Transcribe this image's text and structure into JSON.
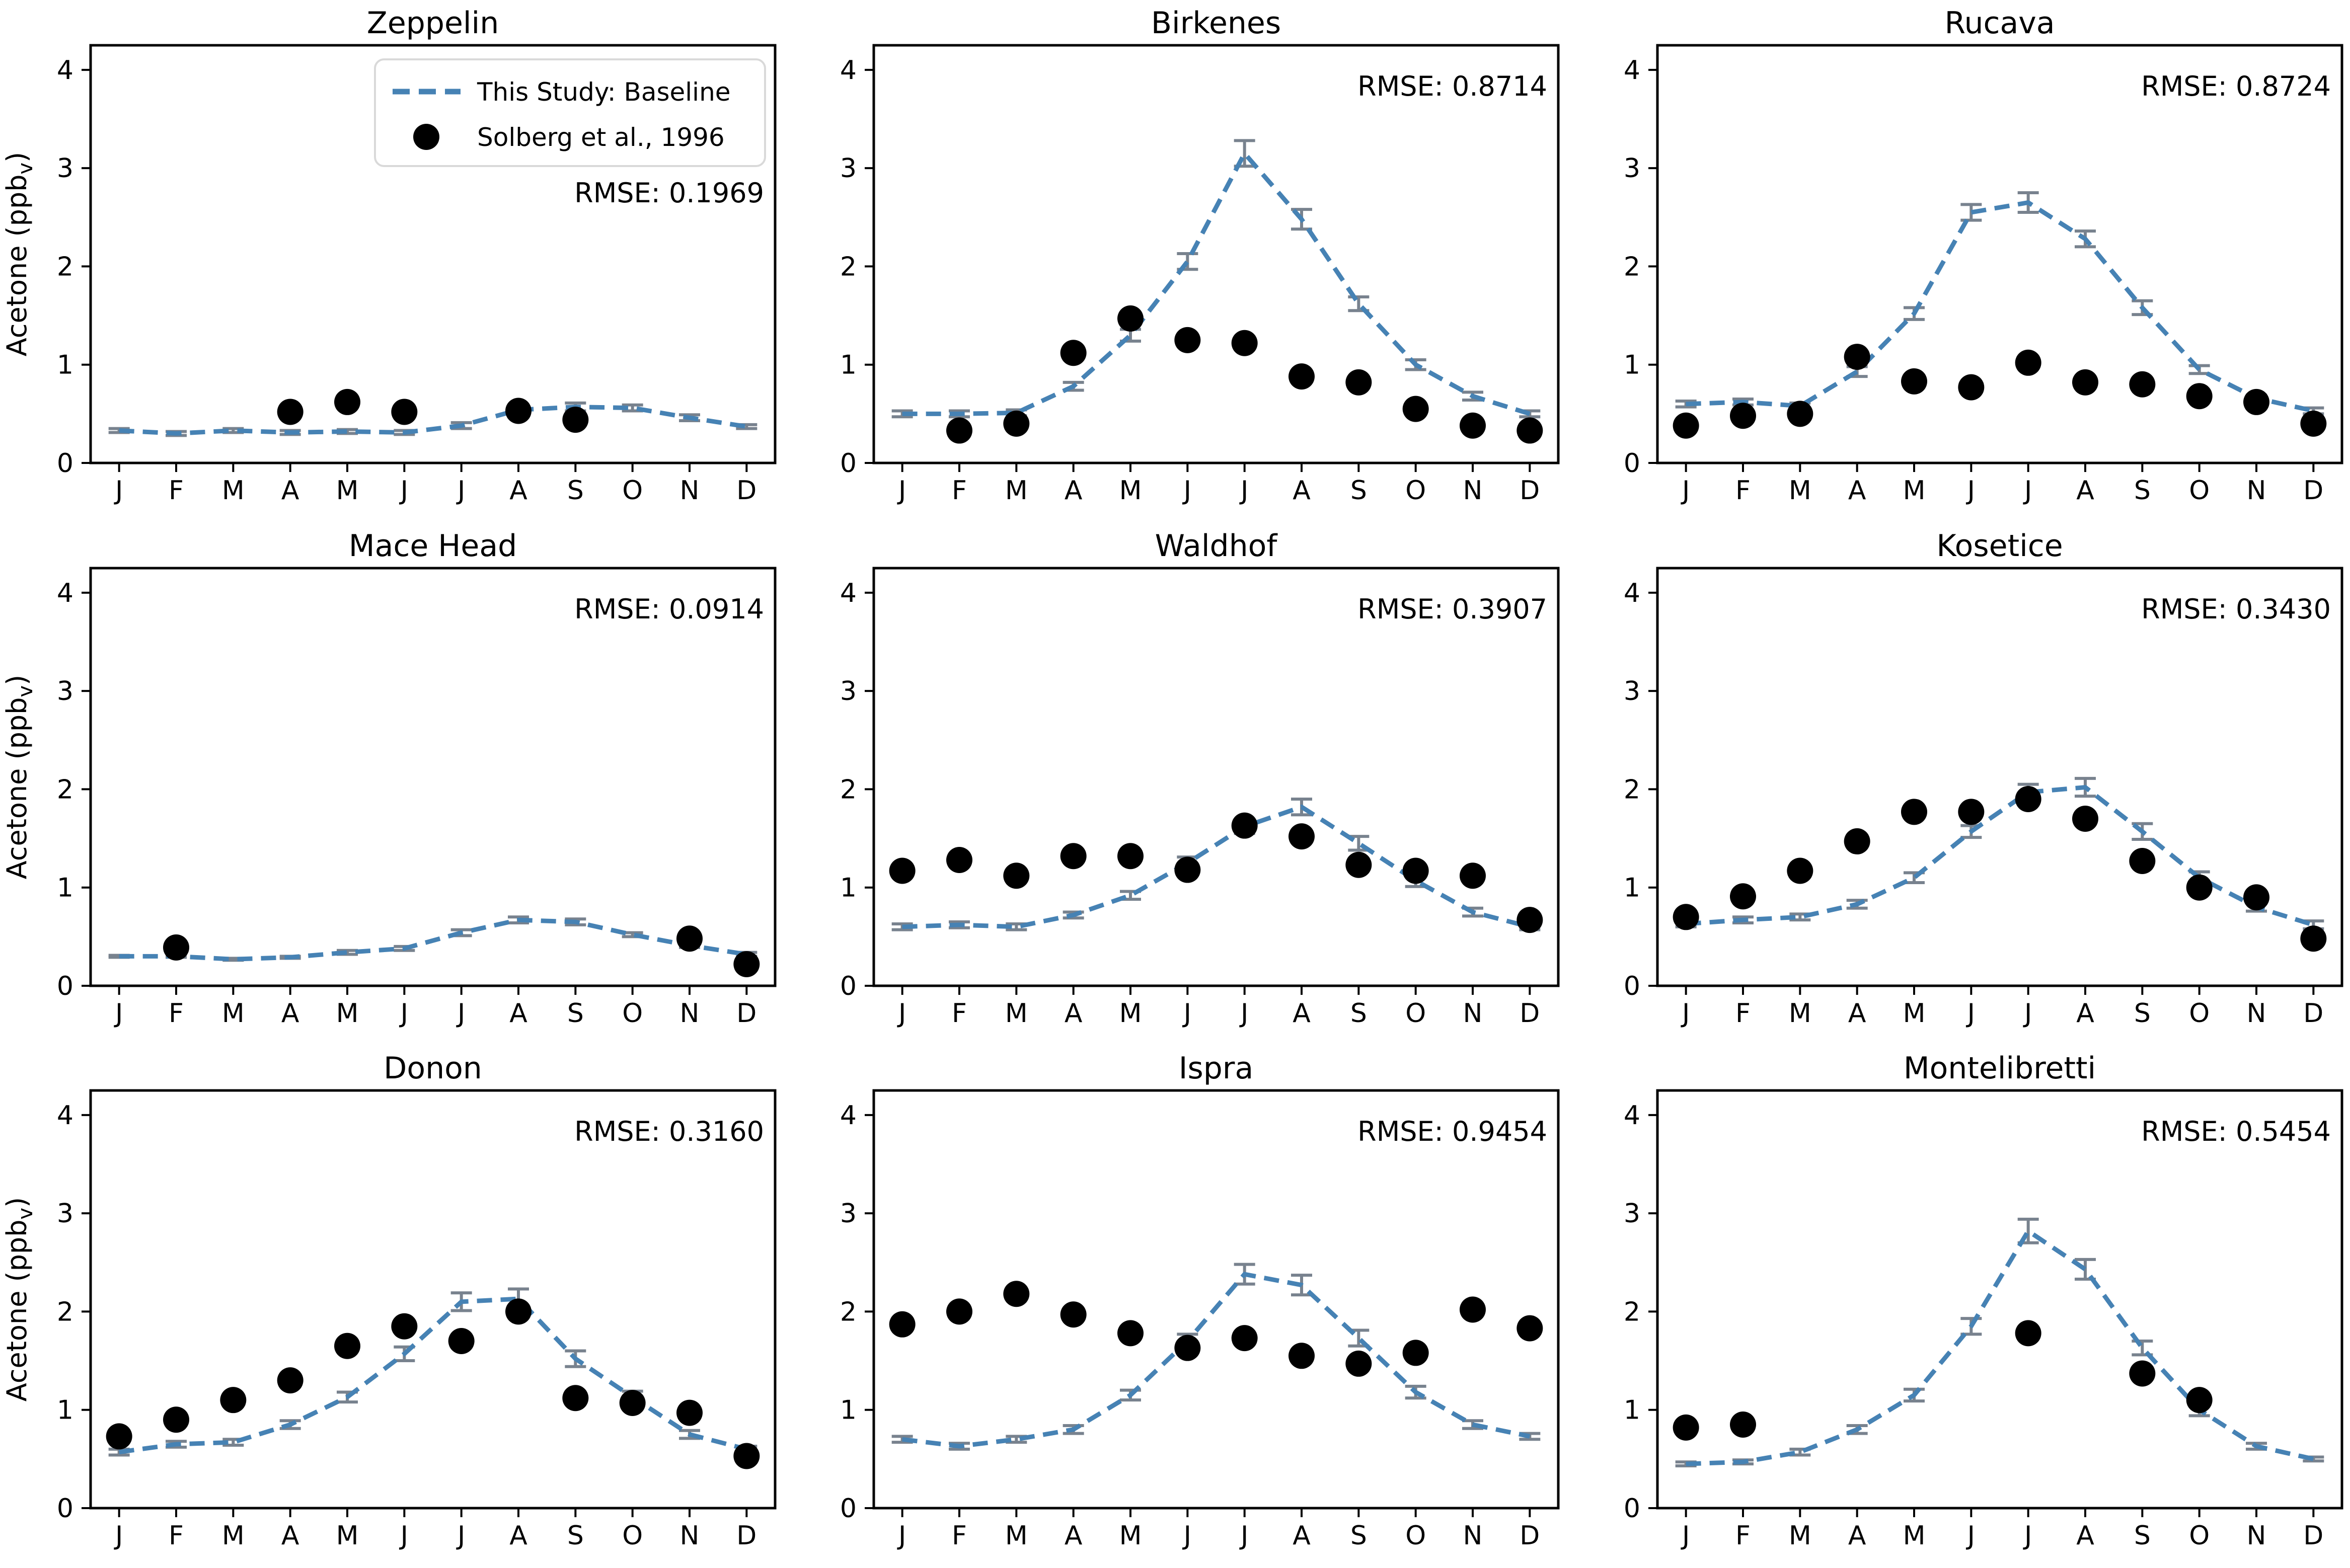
{
  "figure": {
    "ylabel": {
      "main": "Acetone (ppb",
      "sub": "v",
      "close": ")"
    },
    "months": [
      "J",
      "F",
      "M",
      "A",
      "M",
      "J",
      "J",
      "A",
      "S",
      "O",
      "N",
      "D"
    ],
    "yticks": [
      "0",
      "1",
      "2",
      "3",
      "4"
    ],
    "legend": {
      "baseline_label": "This Study: Baseline",
      "solberg_label": "Solberg et al., 1996"
    },
    "colors": {
      "baseline": "#4682B4",
      "errorbar": "#78828E",
      "solberg": "#000000",
      "legend_border": "#d9d9d9"
    }
  },
  "chart_data": [
    {
      "type": "line",
      "station": "Zeppelin",
      "rmse_text": "RMSE: 0.1969",
      "show_legend": true,
      "show_ylabel": true,
      "x": [
        "J",
        "F",
        "M",
        "A",
        "M",
        "J",
        "J",
        "A",
        "S",
        "O",
        "N",
        "D"
      ],
      "ylim": [
        0,
        4.25
      ],
      "series": [
        {
          "name": "This Study: Baseline",
          "values": [
            0.33,
            0.3,
            0.33,
            0.31,
            0.32,
            0.31,
            0.38,
            0.54,
            0.57,
            0.56,
            0.46,
            0.37
          ],
          "errors": [
            0.02,
            0.02,
            0.02,
            0.02,
            0.02,
            0.02,
            0.03,
            0.04,
            0.04,
            0.03,
            0.03,
            0.02
          ]
        },
        {
          "name": "Solberg et al., 1996",
          "values": [
            null,
            null,
            null,
            0.52,
            0.62,
            0.52,
            null,
            0.53,
            0.44,
            null,
            null,
            null
          ]
        }
      ]
    },
    {
      "type": "line",
      "station": "Birkenes",
      "rmse_text": "RMSE: 0.8714",
      "show_legend": false,
      "show_ylabel": false,
      "x": [
        "J",
        "F",
        "M",
        "A",
        "M",
        "J",
        "J",
        "A",
        "S",
        "O",
        "N",
        "D"
      ],
      "ylim": [
        0,
        4.25
      ],
      "series": [
        {
          "name": "This Study: Baseline",
          "values": [
            0.5,
            0.5,
            0.51,
            0.78,
            1.3,
            2.05,
            3.15,
            2.48,
            1.62,
            1.0,
            0.68,
            0.5
          ],
          "errors": [
            0.03,
            0.03,
            0.03,
            0.04,
            0.06,
            0.08,
            0.13,
            0.1,
            0.07,
            0.05,
            0.04,
            0.03
          ]
        },
        {
          "name": "Solberg et al., 1996",
          "values": [
            null,
            0.33,
            0.4,
            1.12,
            1.47,
            1.25,
            1.22,
            0.88,
            0.82,
            0.55,
            0.38,
            0.33
          ]
        }
      ]
    },
    {
      "type": "line",
      "station": "Rucava",
      "rmse_text": "RMSE: 0.8724",
      "show_legend": false,
      "show_ylabel": false,
      "x": [
        "J",
        "F",
        "M",
        "A",
        "M",
        "J",
        "J",
        "A",
        "S",
        "O",
        "N",
        "D"
      ],
      "ylim": [
        0,
        4.25
      ],
      "series": [
        {
          "name": "This Study: Baseline",
          "values": [
            0.6,
            0.62,
            0.58,
            0.93,
            1.52,
            2.55,
            2.65,
            2.28,
            1.58,
            0.95,
            0.66,
            0.53
          ],
          "errors": [
            0.03,
            0.03,
            0.03,
            0.05,
            0.06,
            0.08,
            0.1,
            0.08,
            0.07,
            0.04,
            0.03,
            0.03
          ]
        },
        {
          "name": "Solberg et al., 1996",
          "values": [
            0.38,
            0.48,
            0.5,
            1.08,
            0.83,
            0.77,
            1.02,
            0.82,
            0.8,
            0.68,
            0.62,
            0.4
          ]
        }
      ]
    },
    {
      "type": "line",
      "station": "Mace Head",
      "rmse_text": "RMSE: 0.0914",
      "show_legend": false,
      "show_ylabel": true,
      "x": [
        "J",
        "F",
        "M",
        "A",
        "M",
        "J",
        "J",
        "A",
        "S",
        "O",
        "N",
        "D"
      ],
      "ylim": [
        0,
        4.25
      ],
      "series": [
        {
          "name": "This Study: Baseline",
          "values": [
            0.3,
            0.3,
            0.27,
            0.29,
            0.34,
            0.38,
            0.54,
            0.67,
            0.65,
            0.52,
            0.41,
            0.32
          ],
          "errors": [
            0.01,
            0.01,
            0.01,
            0.01,
            0.02,
            0.02,
            0.03,
            0.03,
            0.03,
            0.02,
            0.02,
            0.02
          ]
        },
        {
          "name": "Solberg et al., 1996",
          "values": [
            null,
            0.39,
            null,
            null,
            null,
            null,
            null,
            null,
            null,
            null,
            0.48,
            0.22
          ]
        }
      ]
    },
    {
      "type": "line",
      "station": "Waldhof",
      "rmse_text": "RMSE: 0.3907",
      "show_legend": false,
      "show_ylabel": false,
      "x": [
        "J",
        "F",
        "M",
        "A",
        "M",
        "J",
        "J",
        "A",
        "S",
        "O",
        "N",
        "D"
      ],
      "ylim": [
        0,
        4.25
      ],
      "series": [
        {
          "name": "This Study: Baseline",
          "values": [
            0.6,
            0.62,
            0.6,
            0.72,
            0.92,
            1.25,
            1.62,
            1.82,
            1.45,
            1.07,
            0.75,
            0.6
          ],
          "errors": [
            0.03,
            0.03,
            0.03,
            0.03,
            0.04,
            0.06,
            0.07,
            0.08,
            0.07,
            0.06,
            0.04,
            0.03
          ]
        },
        {
          "name": "Solberg et al., 1996",
          "values": [
            1.17,
            1.28,
            1.12,
            1.32,
            1.32,
            1.18,
            1.63,
            1.52,
            1.23,
            1.17,
            1.12,
            0.67
          ]
        }
      ]
    },
    {
      "type": "line",
      "station": "Kosetice",
      "rmse_text": "RMSE: 0.3430",
      "show_legend": false,
      "show_ylabel": false,
      "x": [
        "J",
        "F",
        "M",
        "A",
        "M",
        "J",
        "J",
        "A",
        "S",
        "O",
        "N",
        "D"
      ],
      "ylim": [
        0,
        4.25
      ],
      "series": [
        {
          "name": "This Study: Baseline",
          "values": [
            0.63,
            0.67,
            0.7,
            0.83,
            1.1,
            1.57,
            1.97,
            2.02,
            1.57,
            1.1,
            0.8,
            0.62
          ],
          "errors": [
            0.03,
            0.03,
            0.03,
            0.04,
            0.05,
            0.06,
            0.08,
            0.09,
            0.08,
            0.06,
            0.04,
            0.04
          ]
        },
        {
          "name": "Solberg et al., 1996",
          "values": [
            0.7,
            0.91,
            1.17,
            1.47,
            1.77,
            1.77,
            1.9,
            1.7,
            1.27,
            1.0,
            0.9,
            0.48
          ]
        }
      ]
    },
    {
      "type": "line",
      "station": "Donon",
      "rmse_text": "RMSE: 0.3160",
      "show_legend": false,
      "show_ylabel": true,
      "x": [
        "J",
        "F",
        "M",
        "A",
        "M",
        "J",
        "J",
        "A",
        "S",
        "O",
        "N",
        "D"
      ],
      "ylim": [
        0,
        4.25
      ],
      "series": [
        {
          "name": "This Study: Baseline",
          "values": [
            0.57,
            0.65,
            0.67,
            0.85,
            1.13,
            1.57,
            2.1,
            2.13,
            1.52,
            1.13,
            0.75,
            0.6
          ],
          "errors": [
            0.03,
            0.03,
            0.03,
            0.04,
            0.05,
            0.07,
            0.09,
            0.1,
            0.08,
            0.06,
            0.04,
            0.03
          ]
        },
        {
          "name": "Solberg et al., 1996",
          "values": [
            0.73,
            0.9,
            1.1,
            1.3,
            1.65,
            1.85,
            1.7,
            2.0,
            1.12,
            1.07,
            0.97,
            0.53
          ]
        }
      ]
    },
    {
      "type": "line",
      "station": "Ispra",
      "rmse_text": "RMSE: 0.9454",
      "show_legend": false,
      "show_ylabel": false,
      "x": [
        "J",
        "F",
        "M",
        "A",
        "M",
        "J",
        "J",
        "A",
        "S",
        "O",
        "N",
        "D"
      ],
      "ylim": [
        0,
        4.25
      ],
      "series": [
        {
          "name": "This Study: Baseline",
          "values": [
            0.7,
            0.63,
            0.7,
            0.8,
            1.15,
            1.7,
            2.38,
            2.27,
            1.73,
            1.18,
            0.85,
            0.73
          ],
          "errors": [
            0.03,
            0.03,
            0.03,
            0.04,
            0.05,
            0.07,
            0.1,
            0.1,
            0.08,
            0.06,
            0.04,
            0.03
          ]
        },
        {
          "name": "Solberg et al., 1996",
          "values": [
            1.87,
            2.0,
            2.18,
            1.97,
            1.78,
            1.63,
            1.73,
            1.55,
            1.47,
            1.58,
            2.02,
            1.83
          ]
        }
      ]
    },
    {
      "type": "line",
      "station": "Montelibretti",
      "rmse_text": "RMSE: 0.5454",
      "show_legend": false,
      "show_ylabel": false,
      "x": [
        "J",
        "F",
        "M",
        "A",
        "M",
        "J",
        "J",
        "A",
        "S",
        "O",
        "N",
        "D"
      ],
      "ylim": [
        0,
        4.25
      ],
      "series": [
        {
          "name": "This Study: Baseline",
          "values": [
            0.45,
            0.47,
            0.57,
            0.8,
            1.15,
            1.85,
            2.82,
            2.43,
            1.63,
            1.0,
            0.63,
            0.5
          ],
          "errors": [
            0.02,
            0.02,
            0.03,
            0.04,
            0.06,
            0.08,
            0.12,
            0.1,
            0.07,
            0.06,
            0.03,
            0.02
          ]
        },
        {
          "name": "Solberg et al., 1996",
          "values": [
            0.82,
            0.85,
            null,
            null,
            null,
            null,
            1.78,
            null,
            1.37,
            1.1,
            null,
            null
          ]
        }
      ]
    }
  ]
}
